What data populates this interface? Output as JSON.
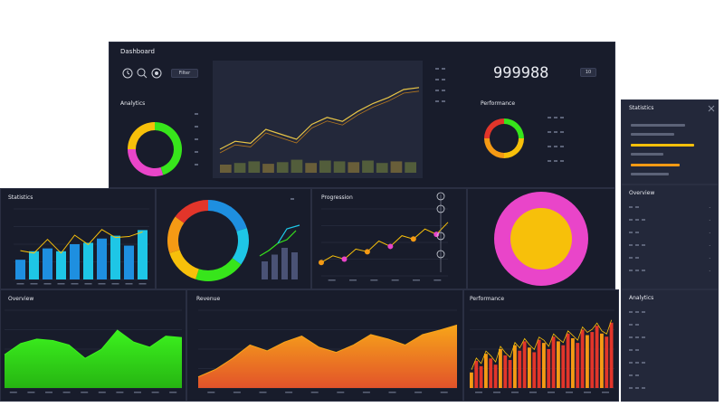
{
  "app": {
    "title": "Dashboard",
    "counter": "999988",
    "badge": "10"
  },
  "header": {
    "icons": [
      "clock-icon",
      "search-icon",
      "settings-icon"
    ],
    "button": "Filter"
  },
  "colors": {
    "bg": "#181c2b",
    "green": "#37e51b",
    "orange": "#f59a14",
    "red": "#e2352a",
    "magenta": "#e945c9",
    "yellow": "#f7c00a",
    "blue": "#1e8fe0",
    "cyan": "#1ec6e6"
  },
  "panels": {
    "top_left_title": "Analytics",
    "top_right_title": "Performance",
    "mid_left_title": "Statistics",
    "mid_chart_title": "Progression",
    "bottom_mid_title": "Revenue",
    "bottom_right_title": "Performance",
    "bottom_left_title": "Overview",
    "side_top_title": "Statistics",
    "side_mid_title": "Overview",
    "side_bottom_title": "Analytics"
  },
  "chart_data": [
    {
      "type": "line",
      "name": "top-trend",
      "x": [
        1,
        2,
        3,
        4,
        5,
        6,
        7,
        8,
        9,
        10,
        11,
        12,
        13,
        14
      ],
      "values": [
        20,
        28,
        26,
        40,
        35,
        30,
        45,
        52,
        48,
        58,
        66,
        72,
        80,
        82
      ],
      "bars": [
        10,
        12,
        14,
        11,
        13,
        16,
        12,
        15,
        14,
        13,
        15,
        12,
        14,
        13
      ],
      "ylim": [
        0,
        100
      ]
    },
    {
      "type": "bar",
      "name": "mid-left-bars",
      "categories": [
        "a",
        "b",
        "c",
        "d",
        "e",
        "f",
        "g",
        "h",
        "i",
        "j"
      ],
      "values": [
        28,
        40,
        44,
        40,
        50,
        52,
        58,
        62,
        48,
        70
      ],
      "ylim": [
        0,
        100
      ]
    },
    {
      "type": "line",
      "name": "mid-scatter-line",
      "x": [
        1,
        2,
        3,
        4,
        5,
        6,
        7,
        8,
        9,
        10,
        11,
        12
      ],
      "values": [
        20,
        30,
        25,
        40,
        36,
        52,
        44,
        60,
        55,
        70,
        62,
        80
      ],
      "ylim": [
        0,
        100
      ]
    },
    {
      "type": "area",
      "name": "green-area",
      "values": [
        45,
        60,
        66,
        64,
        58,
        40,
        52,
        78,
        62,
        55,
        70,
        68
      ],
      "ylim": [
        0,
        100
      ]
    },
    {
      "type": "area",
      "name": "orange-area",
      "values": [
        15,
        25,
        40,
        58,
        50,
        62,
        70,
        55,
        48,
        58,
        72,
        66,
        58,
        72,
        78,
        85
      ],
      "ylim": [
        0,
        100
      ]
    },
    {
      "type": "bar",
      "name": "red-orange-bars",
      "values": [
        20,
        35,
        28,
        44,
        38,
        30,
        50,
        42,
        36,
        55,
        48,
        60,
        52,
        46,
        62,
        58,
        50,
        66,
        60,
        55,
        70,
        64,
        58,
        75,
        68,
        72,
        80,
        70,
        66,
        84
      ],
      "ylim": [
        0,
        100
      ]
    },
    {
      "type": "pie",
      "name": "donut-green",
      "values": [
        45,
        30,
        25
      ],
      "colors": [
        "#37e51b",
        "#e945c9",
        "#f7c00a"
      ]
    },
    {
      "type": "pie",
      "name": "donut-rainbow",
      "values": [
        20,
        15,
        20,
        15,
        15,
        15
      ],
      "colors": [
        "#1e8fe0",
        "#1ec6e6",
        "#37e51b",
        "#f7c00a",
        "#f59a14",
        "#e2352a"
      ]
    },
    {
      "type": "pie",
      "name": "donut-magenta",
      "values": [
        100
      ],
      "colors": [
        "#e945c9"
      ]
    }
  ]
}
